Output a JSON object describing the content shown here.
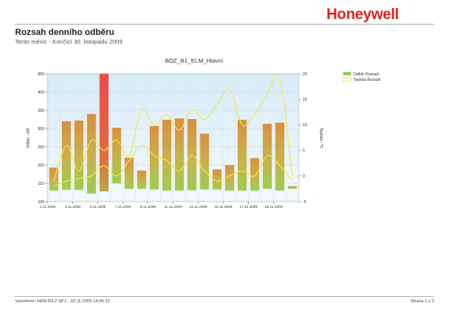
{
  "header": {
    "logo": "Honeywell",
    "title": "Rozsah denního odběru",
    "subtitle": "Tento měsíc - Končící 30. listopadu 2009"
  },
  "footer": {
    "left": "Vytvořeno: HEM R3.2 SP1 - 20.11.2009 14:06:12",
    "right": "Strana 1 z 2"
  },
  "colors": {
    "bar_top": "#d9903e",
    "bar_bottom": "#9ccd52",
    "bar_highlight": "#f04a4a",
    "temp_line": "#f5e64a",
    "plot_bg": "#e8f3fb"
  },
  "chart_data": {
    "type": "bar",
    "title": "BOZ_B1_ELM_Hlavní",
    "xlabel": "",
    "ylabel": "Odber - kW",
    "y2label": "Teplota - °C",
    "ylim": [
      100,
      450
    ],
    "y2lim": [
      -5,
      20
    ],
    "yticks": [
      "100",
      "150",
      "200",
      "250",
      "300",
      "350",
      "400",
      "450"
    ],
    "y2ticks": [
      "-5",
      "0",
      "5",
      "10",
      "15",
      "20"
    ],
    "categories": [
      "1.11.2009",
      "2.11.2009",
      "3.11.2009",
      "4.11.2009",
      "5.11.2009",
      "6.11.2009",
      "7.11.2009",
      "8.11.2009",
      "9.11.2009",
      "10.11.2009",
      "11.11.2009",
      "12.11.2009",
      "13.11.2009",
      "14.11.2009",
      "15.11.2009",
      "16.11.2009",
      "17.11.2009",
      "18.11.2009",
      "19.11.2009",
      "20.11.2009"
    ],
    "xtick_labels": [
      "1.11.2009",
      "3.11.2009",
      "5.11.2009",
      "7.11.2009",
      "9.11.2009",
      "11.11.2009",
      "13.11.2009",
      "15.11.2009",
      "17.11.2009",
      "19.11.2009"
    ],
    "highlight_index": 4,
    "legend_position": "top-right",
    "grid": true,
    "series": [
      {
        "name": "Odběr Rozsah",
        "kind": "range-bar",
        "low": [
          130,
          132,
          132,
          122,
          128,
          150,
          135,
          135,
          133,
          130,
          130,
          131,
          133,
          133,
          130,
          130,
          130,
          135,
          130,
          135
        ],
        "high": [
          193,
          320,
          322,
          340,
          450,
          302,
          220,
          185,
          307,
          324,
          328,
          326,
          286,
          188,
          200,
          324,
          219,
          313,
          316,
          142
        ]
      },
      {
        "name": "Teplota Rozsah",
        "kind": "range-line",
        "max": [
          -1,
          6,
          1,
          7,
          5,
          7,
          4,
          13,
          10,
          12,
          9,
          13,
          11,
          14,
          17,
          10,
          12,
          16,
          19,
          0
        ],
        "min": [
          -2,
          -1,
          -0.5,
          0,
          2,
          0,
          3,
          6,
          4,
          3,
          1,
          4,
          1,
          -1,
          0,
          1,
          0,
          4,
          2,
          -1
        ]
      }
    ]
  }
}
